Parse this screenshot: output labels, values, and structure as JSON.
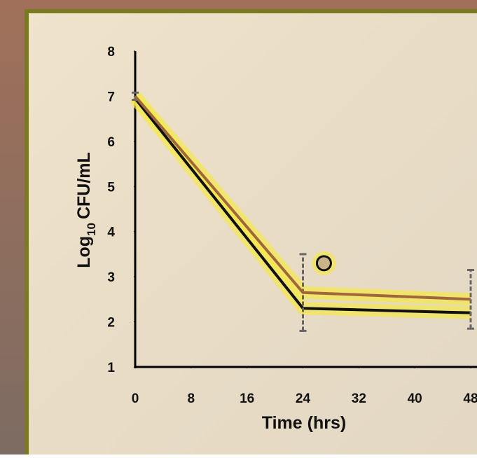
{
  "chart_data": {
    "type": "line",
    "x_label": "Time (hrs)",
    "y_label": {
      "main": "Log",
      "sub": "10",
      "rest": "CFU/mL"
    },
    "x": [
      0,
      24,
      48
    ],
    "series": [
      {
        "color": "#111111",
        "values": [
          6.95,
          2.3,
          2.2
        ]
      },
      {
        "color": "#a0683a",
        "values": [
          7.0,
          2.65,
          2.5
        ],
        "errors": [
          0.08,
          0.85,
          0.65
        ],
        "error_color": "#666666"
      }
    ],
    "marker": {
      "x": 27,
      "y": 3.3
    },
    "xlim": [
      0,
      48
    ],
    "xticks": [
      0,
      8,
      16,
      24,
      32,
      40,
      48
    ],
    "ylim": [
      1,
      8
    ],
    "yticks": [
      1,
      2,
      3,
      4,
      5,
      6,
      7,
      8
    ]
  }
}
